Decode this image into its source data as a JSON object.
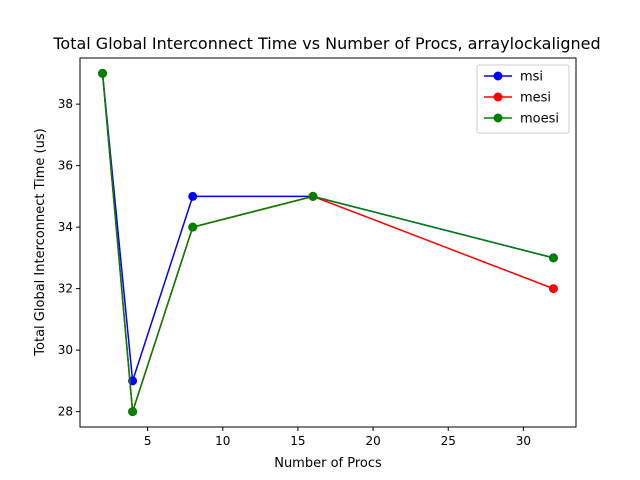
{
  "chart_data": {
    "type": "line",
    "title": "Total Global Interconnect Time vs Number of Procs, arraylockaligned",
    "xlabel": "Number of Procs",
    "ylabel": "Total Global Interconnect Time (us)",
    "x": [
      2,
      4,
      8,
      16,
      32
    ],
    "xlim": [
      0.5,
      33.5
    ],
    "ylim": [
      27.5,
      39.5
    ],
    "xticks": [
      5,
      10,
      15,
      20,
      25,
      30
    ],
    "yticks": [
      28,
      30,
      32,
      34,
      36,
      38
    ],
    "grid": false,
    "legend_position": "top-right",
    "series": [
      {
        "name": "msi",
        "color": "#0000ff",
        "values": [
          39,
          29,
          35,
          35,
          33
        ]
      },
      {
        "name": "mesi",
        "color": "#ff0000",
        "values": [
          39,
          28,
          34,
          35,
          32
        ]
      },
      {
        "name": "moesi",
        "color": "#008000",
        "values": [
          39,
          28,
          34,
          35,
          33
        ]
      }
    ]
  }
}
